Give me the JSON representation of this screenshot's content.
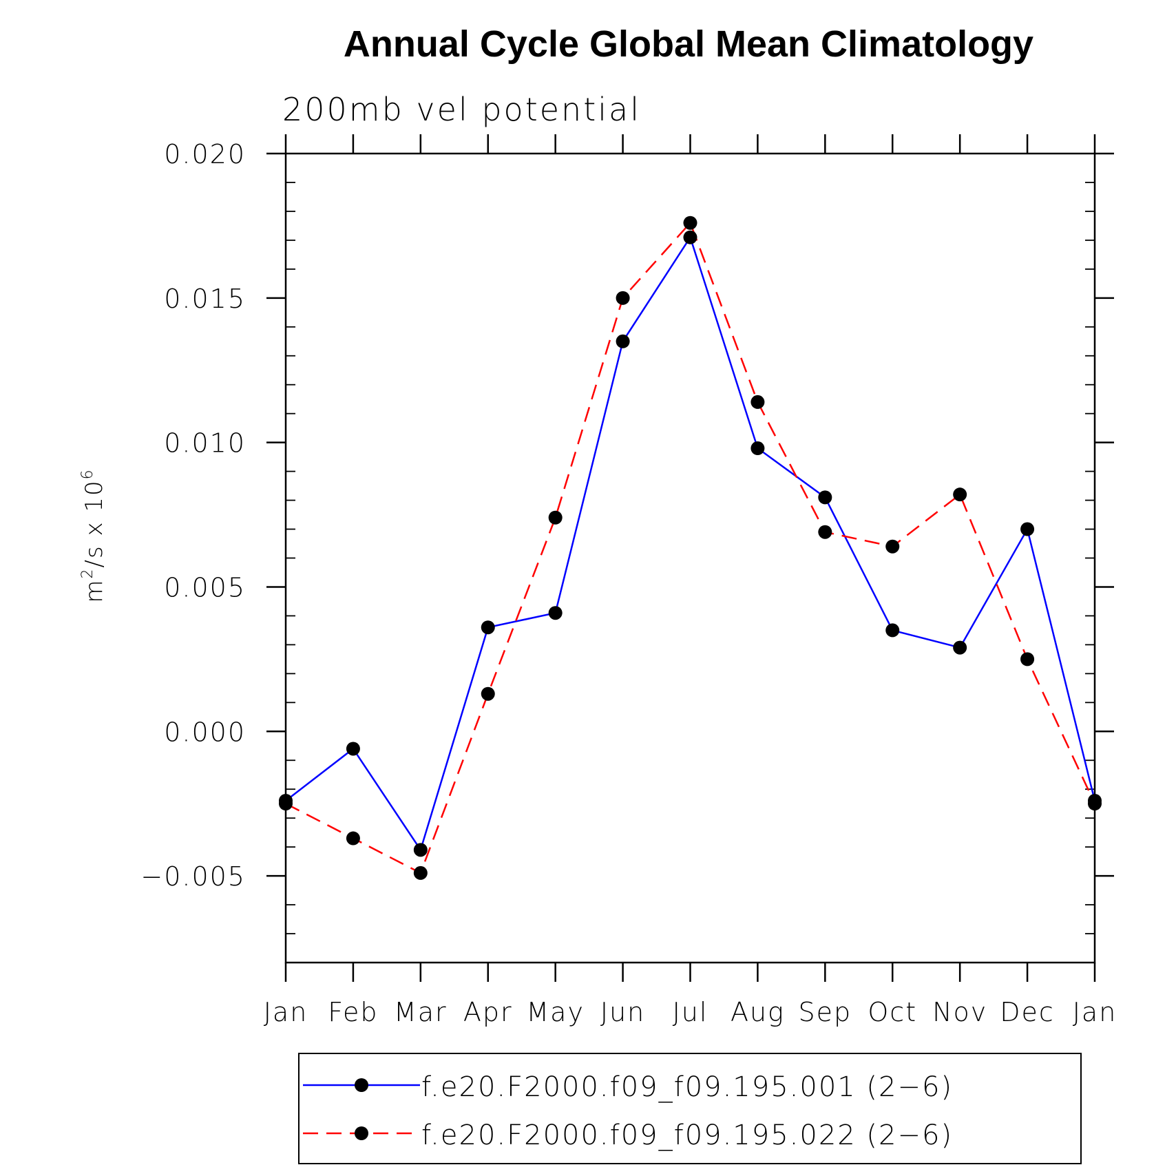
{
  "chart_data": {
    "type": "line",
    "title": "Annual Cycle Global Mean Climatology",
    "subtitle": "200mb vel potential",
    "ylabel": "m²/s x 10⁶",
    "ylabel_base": "m",
    "ylabel_sup1": "2",
    "ylabel_mid": "/s x 10",
    "ylabel_sup2": "6",
    "xlabel": "",
    "categories": [
      "Jan",
      "Feb",
      "Mar",
      "Apr",
      "May",
      "Jun",
      "Jul",
      "Aug",
      "Sep",
      "Oct",
      "Nov",
      "Dec",
      "Jan"
    ],
    "ylim": [
      -0.008,
      0.02
    ],
    "yticks": [
      "0.020",
      "0.015",
      "0.010",
      "0.005",
      "0.000",
      "−0.005"
    ],
    "ytick_values": [
      0.02,
      0.015,
      0.01,
      0.005,
      0.0,
      -0.005
    ],
    "grid": false,
    "legend_position": "bottom",
    "series": [
      {
        "name": "f.e20.F2000.f09_f09.195.001 (2−6)",
        "color": "#0000ff",
        "style": "solid",
        "marker": "filled-circle",
        "values": [
          -0.0024,
          -0.0006,
          -0.0041,
          0.0036,
          0.0041,
          0.0135,
          0.0171,
          0.0098,
          0.0081,
          0.0035,
          0.0029,
          0.007,
          -0.0024
        ]
      },
      {
        "name": "f.e20.F2000.f09_f09.195.022 (2−6)",
        "color": "#ff0000",
        "style": "dashed",
        "marker": "filled-circle",
        "values": [
          -0.0025,
          -0.0037,
          -0.0049,
          0.0013,
          0.0074,
          0.015,
          0.0176,
          0.0114,
          0.0069,
          0.0064,
          0.0082,
          0.0025,
          -0.0025
        ]
      }
    ]
  }
}
